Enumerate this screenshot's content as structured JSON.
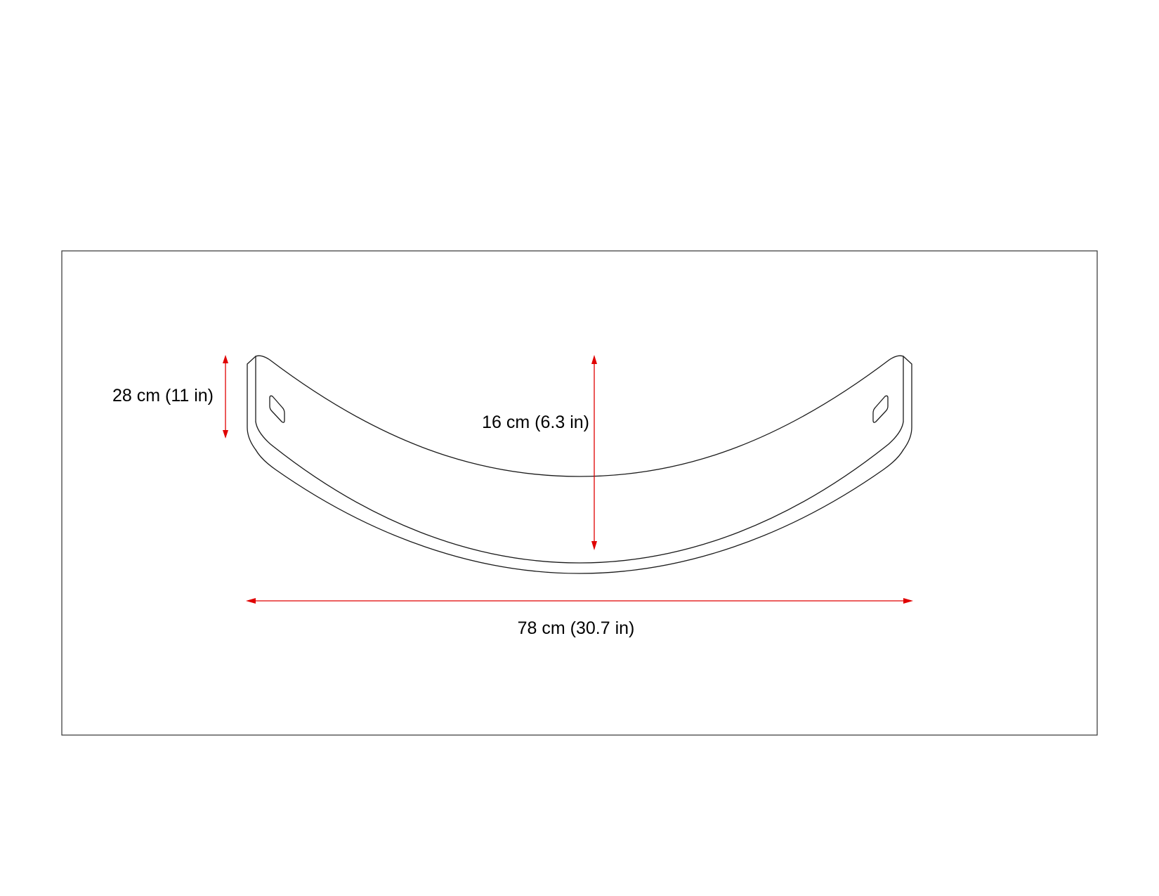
{
  "dimensions": {
    "height": "28 cm (11 in)",
    "depth": "16 cm (6.3 in)",
    "width": "78 cm (30.7 in)"
  },
  "colors": {
    "dimension_lines": "#e00000",
    "outline": "#1a1a1a",
    "frame": "#333333"
  }
}
